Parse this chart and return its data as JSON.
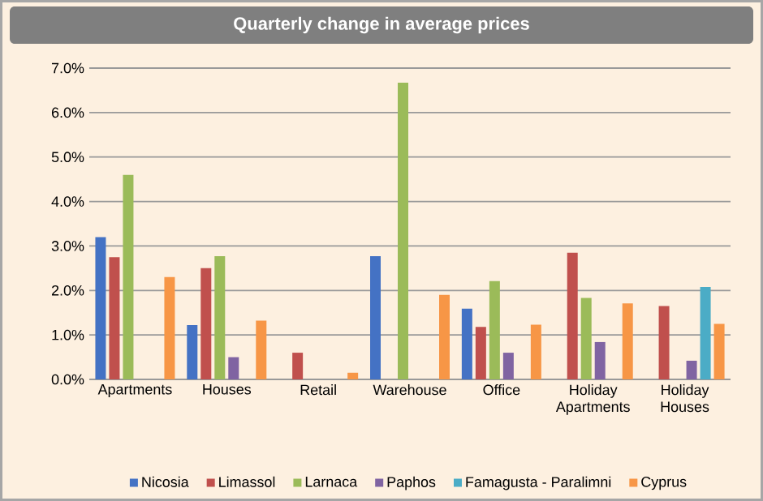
{
  "chart_data": {
    "type": "bar",
    "title": "Quarterly change in average prices",
    "categories": [
      "Apartments",
      "Houses",
      "Retail",
      "Warehouse",
      "Office",
      "Holiday Apartments",
      "Holiday Houses"
    ],
    "series": [
      {
        "name": "Nicosia",
        "color": "#4472c4",
        "values": [
          3.2,
          1.22,
          null,
          2.77,
          1.59,
          null,
          null
        ]
      },
      {
        "name": "Limassol",
        "color": "#c0504d",
        "values": [
          2.75,
          2.5,
          0.6,
          null,
          1.18,
          2.85,
          1.65
        ]
      },
      {
        "name": "Larnaca",
        "color": "#9bbb59",
        "values": [
          4.6,
          2.77,
          null,
          6.67,
          2.21,
          1.83,
          null
        ]
      },
      {
        "name": "Paphos",
        "color": "#8064a2",
        "values": [
          null,
          0.5,
          null,
          null,
          0.6,
          0.84,
          0.42
        ]
      },
      {
        "name": "Famagusta - Paralimni",
        "color": "#4bacc6",
        "values": [
          null,
          null,
          null,
          null,
          null,
          null,
          2.08
        ]
      },
      {
        "name": "Cyprus",
        "color": "#f79646",
        "values": [
          2.3,
          1.32,
          0.15,
          1.9,
          1.23,
          1.71,
          1.25
        ]
      }
    ],
    "ylim": [
      0,
      7
    ],
    "yticks": [
      {
        "value": 0,
        "label": "0.0%"
      },
      {
        "value": 1,
        "label": "1.0%"
      },
      {
        "value": 2,
        "label": "2.0%"
      },
      {
        "value": 3,
        "label": "3.0%"
      },
      {
        "value": 4,
        "label": "4.0%"
      },
      {
        "value": 5,
        "label": "5.0%"
      },
      {
        "value": 6,
        "label": "6.0%"
      },
      {
        "value": 7,
        "label": "7.0%"
      }
    ],
    "grid": "y",
    "legend": "bottom"
  }
}
